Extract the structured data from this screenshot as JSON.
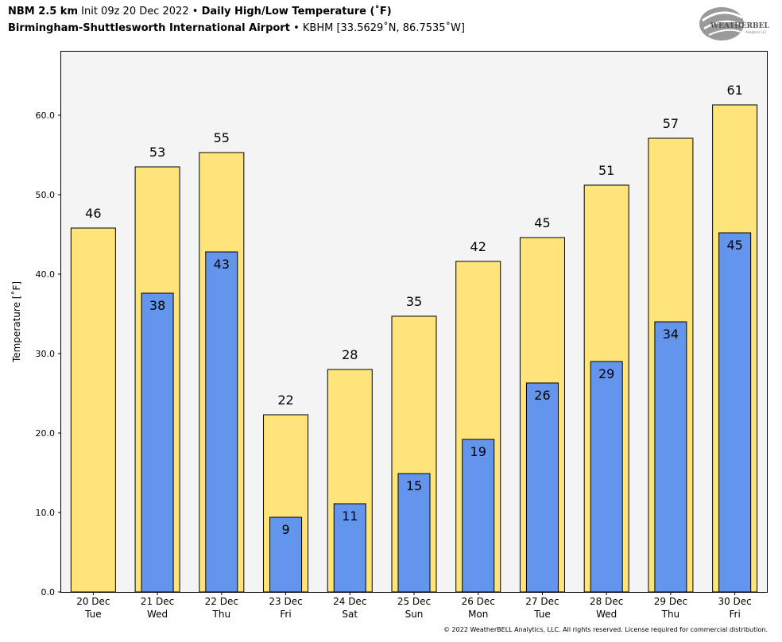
{
  "header": {
    "model": "NBM 2.5 km",
    "init": "Init 09z 20 Dec 2022",
    "bullet": "•",
    "product": "Daily High/Low Temperature (˚F)",
    "location": "Birmingham-Shuttlesworth International Airport",
    "station": "KBHM [33.5629˚N, 86.7535˚W]"
  },
  "logo": {
    "text": "WEATHERBELL",
    "small": "Analytics LLC",
    "icon": "weatherbell-logo"
  },
  "copyright": "© 2022 WeatherBELL Analytics, LLC. All rights reserved. License required for commercial distribution.",
  "colors": {
    "high": "#FFE47A",
    "low": "#6495ED",
    "plot_bg": "#F4F4F4"
  },
  "chart_data": {
    "type": "bar",
    "ylabel": "Temperature [˚F]",
    "ylim": [
      0,
      68
    ],
    "yticks": [
      "0.0",
      "10.0",
      "20.0",
      "30.0",
      "40.0",
      "50.0",
      "60.0"
    ],
    "grid": false,
    "categories": [
      {
        "date": "20 Dec",
        "day": "Tue"
      },
      {
        "date": "21 Dec",
        "day": "Wed"
      },
      {
        "date": "22 Dec",
        "day": "Thu"
      },
      {
        "date": "23 Dec",
        "day": "Fri"
      },
      {
        "date": "24 Dec",
        "day": "Sat"
      },
      {
        "date": "25 Dec",
        "day": "Sun"
      },
      {
        "date": "26 Dec",
        "day": "Mon"
      },
      {
        "date": "27 Dec",
        "day": "Tue"
      },
      {
        "date": "28 Dec",
        "day": "Wed"
      },
      {
        "date": "29 Dec",
        "day": "Thu"
      },
      {
        "date": "30 Dec",
        "day": "Fri"
      }
    ],
    "series": [
      {
        "key": "high",
        "values": [
          45.8,
          53.5,
          55.3,
          22.3,
          28.0,
          34.7,
          41.6,
          44.6,
          51.2,
          57.1,
          61.3
        ],
        "labels": [
          "46",
          "53",
          "55",
          "22",
          "28",
          "35",
          "42",
          "45",
          "51",
          "57",
          "61"
        ]
      },
      {
        "key": "low",
        "values": [
          null,
          37.6,
          42.8,
          9.4,
          11.1,
          14.9,
          19.2,
          26.3,
          29.0,
          34.0,
          45.2
        ],
        "labels": [
          "",
          "38",
          "43",
          "9",
          "11",
          "15",
          "19",
          "26",
          "29",
          "34",
          "45"
        ]
      }
    ]
  }
}
